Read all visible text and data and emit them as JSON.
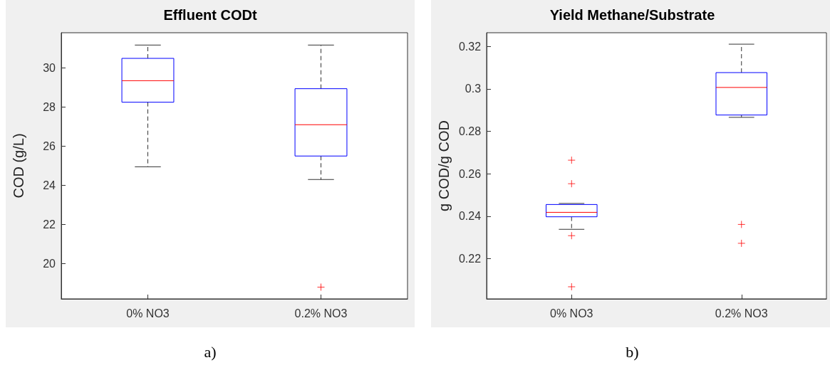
{
  "chart_data": [
    {
      "type": "box",
      "title": "Effluent CODt",
      "ylabel": "COD (g/L)",
      "categories": [
        "0% NO3",
        "0.2% NO3"
      ],
      "series": [
        {
          "color": "#0000ff",
          "boxes": [
            {
              "low": 24.95,
              "q1": 28.25,
              "median": 29.35,
              "q3": 30.49,
              "high": 31.17
            },
            {
              "low": 24.3,
              "q1": 25.5,
              "median": 27.1,
              "q3": 28.94,
              "high": 31.17,
              "outliers": [
                18.8
              ]
            }
          ]
        }
      ],
      "ylim": [
        18.2,
        31.8
      ],
      "yticks": [
        20,
        22,
        24,
        26,
        28,
        30
      ],
      "grid": false,
      "annotations": [
        "a)"
      ]
    },
    {
      "type": "box",
      "title": "Yield Methane/Substrate",
      "ylabel": "g COD/g COD",
      "categories": [
        "0% NO3",
        "0.2% NO3"
      ],
      "series": [
        {
          "color": "#0000ff",
          "boxes": [
            {
              "low": 0.2338,
              "q1": 0.2397,
              "median": 0.2418,
              "q3": 0.2455,
              "high": 0.246,
              "outliers": [
                0.2664,
                0.2553,
                0.2308,
                0.2067
              ]
            },
            {
              "low": 0.2866,
              "q1": 0.2877,
              "median": 0.3007,
              "q3": 0.3077,
              "high": 0.3211,
              "outliers": [
                0.2361,
                0.2272
              ]
            }
          ]
        }
      ],
      "ylim": [
        0.201,
        0.3265
      ],
      "yticks": [
        0.22,
        0.24,
        0.26,
        0.28,
        0.3,
        0.32
      ],
      "grid": false,
      "annotations": [
        "b)"
      ]
    }
  ]
}
